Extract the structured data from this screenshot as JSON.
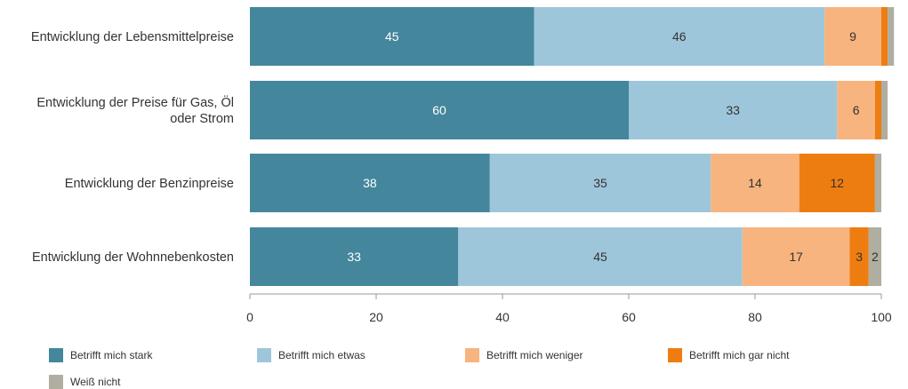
{
  "chart_data": {
    "type": "bar",
    "orientation": "horizontal",
    "stacked": true,
    "categories": [
      [
        "Entwicklung der Lebensmittelpreise"
      ],
      [
        "Entwicklung der Preise für Gas, Öl",
        "oder Strom"
      ],
      [
        "Entwicklung der Benzinpreise"
      ],
      [
        "Entwicklung der Wohnnebenkosten"
      ]
    ],
    "series": [
      {
        "name": "Betrifft mich stark",
        "color": "#44869c",
        "label_color": "#ffffff",
        "values": [
          45,
          60,
          38,
          33
        ]
      },
      {
        "name": "Betrifft mich etwas",
        "color": "#9ec6da",
        "label_color": "#333333",
        "values": [
          46,
          33,
          35,
          45
        ]
      },
      {
        "name": "Betrifft mich weniger",
        "color": "#f7b47f",
        "label_color": "#333333",
        "values": [
          9,
          6,
          14,
          17
        ]
      },
      {
        "name": "Betrifft mich gar nicht",
        "color": "#ee7d11",
        "label_color": "#333333",
        "values": [
          1,
          1,
          12,
          3
        ]
      },
      {
        "name": "Weiß nicht",
        "color": "#afaea0",
        "label_color": "#333333",
        "values": [
          1,
          1,
          1,
          2
        ]
      }
    ],
    "data_labels": [
      [
        "45",
        "46",
        "9",
        "",
        ""
      ],
      [
        "60",
        "33",
        "6",
        "",
        ""
      ],
      [
        "38",
        "35",
        "14",
        "12",
        ""
      ],
      [
        "33",
        "45",
        "17",
        "3",
        "2"
      ]
    ],
    "xlim": [
      0,
      100
    ],
    "xticks": [
      0,
      20,
      40,
      60,
      80,
      100
    ],
    "title": "",
    "xlabel": "",
    "ylabel": "",
    "grid": false,
    "legend_position": "bottom"
  }
}
